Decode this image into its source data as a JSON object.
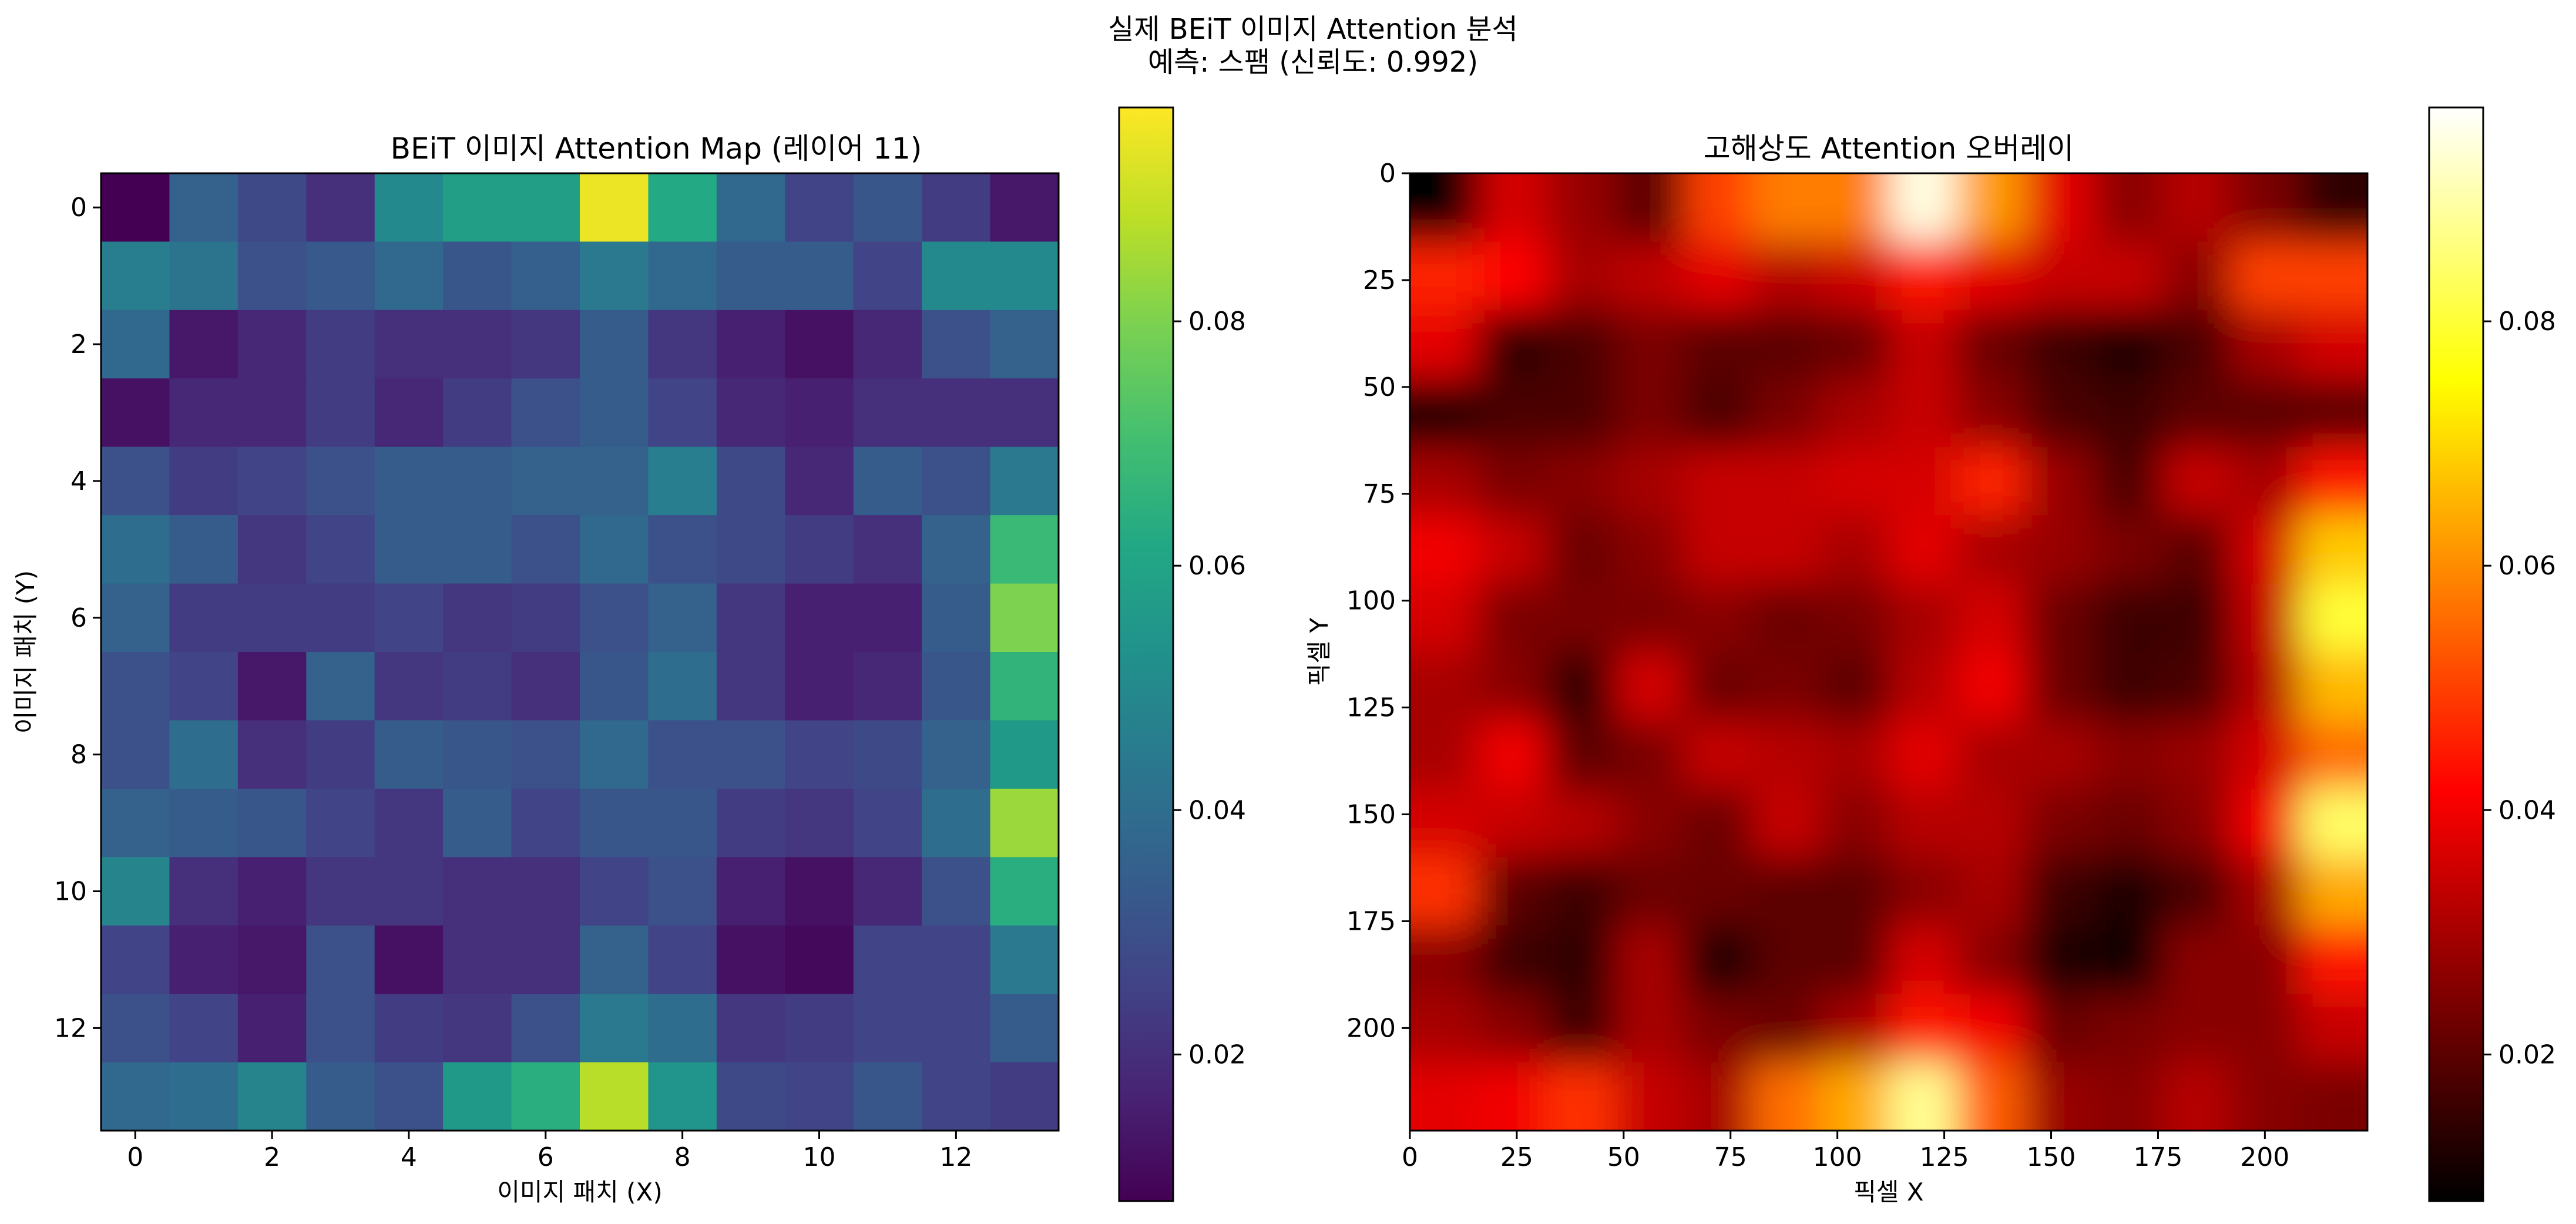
{
  "figure": {
    "title_line1": "실제 BEiT 이미지 Attention 분석",
    "title_line2": "예측: 스팸 (신뢰도: 0.992)"
  },
  "colors": {
    "viridis": [
      "#440154",
      "#482475",
      "#414487",
      "#355f8d",
      "#2a788e",
      "#21918c",
      "#22a884",
      "#44bf70",
      "#7ad151",
      "#bddf26",
      "#fde725"
    ],
    "hot": [
      "#000000",
      "#550000",
      "#aa0000",
      "#ff0000",
      "#ff5500",
      "#ffaa00",
      "#ffff00",
      "#ffff80",
      "#ffffff"
    ]
  },
  "chart_data": [
    {
      "type": "heatmap",
      "title": "BEiT 이미지 Attention Map (레이어 11)",
      "xlabel": "이미지 패치 (X)",
      "ylabel": "이미지 패치 (Y)",
      "colormap": "viridis",
      "vmin": 0.008,
      "vmax": 0.0975,
      "xticks": [
        0,
        2,
        4,
        6,
        8,
        10,
        12
      ],
      "yticks": [
        0,
        2,
        4,
        6,
        8,
        10,
        12
      ],
      "colorbar_ticks": [
        0.02,
        0.04,
        0.06,
        0.08
      ],
      "values": [
        [
          0.008,
          0.036,
          0.028,
          0.02,
          0.05,
          0.058,
          0.058,
          0.095,
          0.062,
          0.038,
          0.026,
          0.032,
          0.024,
          0.014
        ],
        [
          0.046,
          0.042,
          0.03,
          0.033,
          0.038,
          0.032,
          0.035,
          0.044,
          0.038,
          0.034,
          0.034,
          0.026,
          0.05,
          0.05
        ],
        [
          0.038,
          0.014,
          0.018,
          0.024,
          0.02,
          0.02,
          0.022,
          0.034,
          0.022,
          0.016,
          0.012,
          0.018,
          0.03,
          0.036
        ],
        [
          0.012,
          0.018,
          0.018,
          0.024,
          0.018,
          0.024,
          0.03,
          0.034,
          0.026,
          0.018,
          0.016,
          0.02,
          0.02,
          0.02
        ],
        [
          0.03,
          0.024,
          0.026,
          0.03,
          0.034,
          0.034,
          0.036,
          0.036,
          0.046,
          0.028,
          0.018,
          0.034,
          0.03,
          0.044
        ],
        [
          0.04,
          0.034,
          0.022,
          0.026,
          0.034,
          0.034,
          0.03,
          0.038,
          0.03,
          0.028,
          0.024,
          0.02,
          0.036,
          0.068
        ],
        [
          0.036,
          0.024,
          0.024,
          0.024,
          0.026,
          0.022,
          0.024,
          0.03,
          0.036,
          0.022,
          0.016,
          0.016,
          0.034,
          0.08
        ],
        [
          0.03,
          0.026,
          0.014,
          0.036,
          0.022,
          0.024,
          0.02,
          0.032,
          0.04,
          0.022,
          0.016,
          0.018,
          0.032,
          0.066
        ],
        [
          0.03,
          0.04,
          0.02,
          0.024,
          0.034,
          0.032,
          0.03,
          0.038,
          0.03,
          0.03,
          0.026,
          0.028,
          0.036,
          0.056
        ],
        [
          0.036,
          0.034,
          0.032,
          0.026,
          0.022,
          0.034,
          0.026,
          0.032,
          0.032,
          0.024,
          0.022,
          0.026,
          0.04,
          0.084
        ],
        [
          0.048,
          0.02,
          0.016,
          0.022,
          0.022,
          0.02,
          0.02,
          0.026,
          0.03,
          0.016,
          0.012,
          0.018,
          0.03,
          0.064
        ],
        [
          0.026,
          0.016,
          0.014,
          0.03,
          0.012,
          0.02,
          0.02,
          0.036,
          0.026,
          0.012,
          0.01,
          0.026,
          0.026,
          0.044
        ],
        [
          0.03,
          0.026,
          0.016,
          0.03,
          0.024,
          0.022,
          0.03,
          0.044,
          0.04,
          0.022,
          0.024,
          0.026,
          0.026,
          0.034
        ],
        [
          0.038,
          0.04,
          0.048,
          0.034,
          0.03,
          0.056,
          0.064,
          0.088,
          0.054,
          0.028,
          0.026,
          0.032,
          0.026,
          0.024
        ]
      ]
    },
    {
      "type": "heatmap",
      "title": "고해상도 Attention 오버레이",
      "xlabel": "픽셀 X",
      "ylabel": "픽셀 Y",
      "colormap": "hot",
      "vmin": 0.008,
      "vmax": 0.0975,
      "xlim": [
        0,
        224
      ],
      "ylim": [
        224,
        0
      ],
      "xticks": [
        0,
        25,
        50,
        75,
        100,
        125,
        150,
        175,
        200
      ],
      "yticks": [
        0,
        25,
        50,
        75,
        100,
        125,
        150,
        175,
        200
      ],
      "colorbar_ticks": [
        0.02,
        0.04,
        0.06,
        0.08
      ],
      "interpolation": "smooth upsample of the 14x14 patch attention to 224x224 pixels"
    }
  ]
}
